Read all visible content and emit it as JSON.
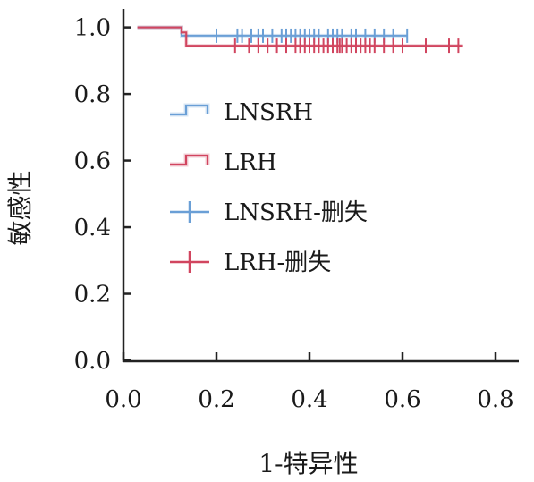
{
  "chart_data": {
    "type": "line",
    "xlabel": "1-特异性",
    "ylabel": "敏感性",
    "xlim": [
      0.0,
      0.85
    ],
    "ylim": [
      0.0,
      1.05
    ],
    "x_ticks": [
      "0.0",
      "0.2",
      "0.4",
      "0.6",
      "0.8"
    ],
    "y_ticks": [
      "0.0",
      "0.2",
      "0.4",
      "0.6",
      "0.8",
      "1.0"
    ],
    "grid": false,
    "legend_position": "center-left",
    "series": [
      {
        "name": "LNSRH",
        "color": "#6a9fd6",
        "step_points": [
          [
            0.03,
            1.0
          ],
          [
            0.125,
            1.0
          ],
          [
            0.125,
            0.975
          ],
          [
            0.61,
            0.975
          ]
        ],
        "censor_label": "LNSRH-删失",
        "censor_y": 0.975,
        "censor_x": [
          0.2,
          0.245,
          0.255,
          0.275,
          0.29,
          0.3,
          0.32,
          0.34,
          0.35,
          0.36,
          0.37,
          0.38,
          0.39,
          0.4,
          0.41,
          0.42,
          0.44,
          0.45,
          0.46,
          0.47,
          0.49,
          0.5,
          0.52,
          0.54,
          0.56,
          0.58,
          0.61
        ]
      },
      {
        "name": "LRH",
        "color": "#d1455f",
        "step_points": [
          [
            0.03,
            1.0
          ],
          [
            0.125,
            1.0
          ],
          [
            0.125,
            0.985
          ],
          [
            0.135,
            0.985
          ],
          [
            0.135,
            0.945
          ],
          [
            0.73,
            0.945
          ]
        ],
        "censor_label": "LRH-删失",
        "censor_y": 0.945,
        "censor_x": [
          0.24,
          0.27,
          0.29,
          0.31,
          0.33,
          0.35,
          0.37,
          0.38,
          0.39,
          0.4,
          0.41,
          0.42,
          0.43,
          0.44,
          0.45,
          0.46,
          0.465,
          0.47,
          0.48,
          0.49,
          0.5,
          0.51,
          0.52,
          0.53,
          0.54,
          0.56,
          0.58,
          0.6,
          0.65,
          0.7,
          0.72
        ]
      }
    ]
  },
  "legend": {
    "items": [
      {
        "label": "LNSRH",
        "color": "#6a9fd6",
        "kind": "step"
      },
      {
        "label": "LRH",
        "color": "#d1455f",
        "kind": "step"
      },
      {
        "label": "LNSRH-删失",
        "color": "#6a9fd6",
        "kind": "cross"
      },
      {
        "label": "LRH-删失",
        "color": "#d1455f",
        "kind": "cross"
      }
    ]
  }
}
